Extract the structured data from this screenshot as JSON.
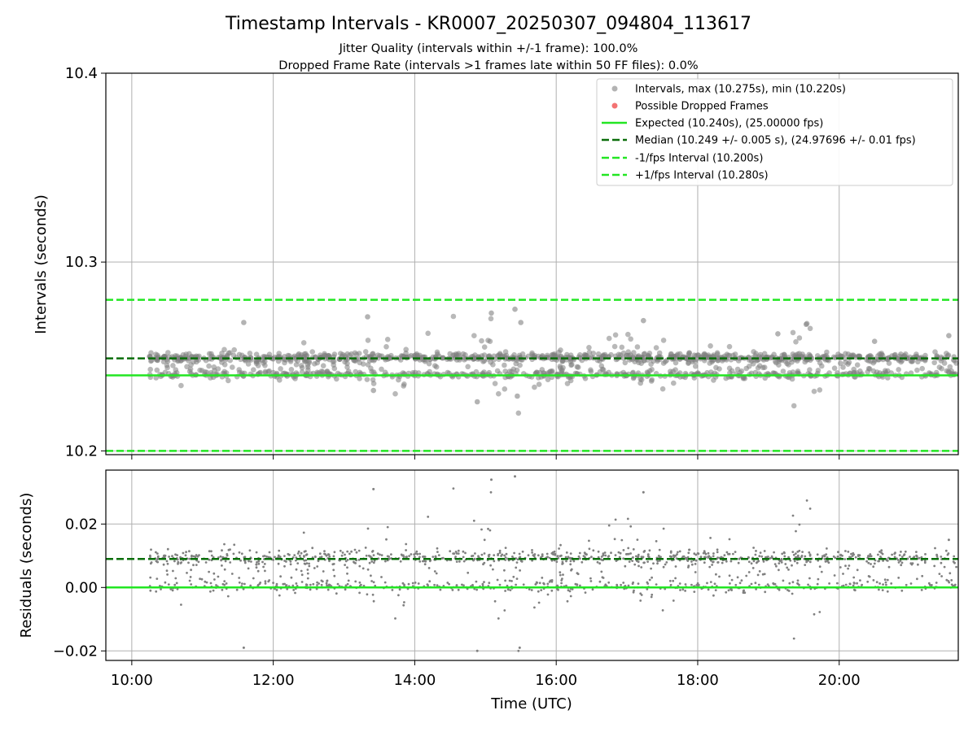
{
  "title": "Timestamp Intervals - KR0007_20250307_094804_113617",
  "subtitle_1": "Jitter Quality (intervals within +/-1 frame): 100.0%",
  "subtitle_2": "Dropped Frame Rate (intervals >1 frames late within 50 FF files): 0.0%",
  "colors": {
    "points": "#808080",
    "dropped": "#f05050",
    "expected": "#22e622",
    "median": "#0a6e0a",
    "bounds": "#22e622",
    "grid": "#b0b0b0"
  },
  "chart_data": [
    {
      "type": "scatter",
      "ylabel": "Intervals (seconds)",
      "ylim": [
        10.198,
        10.4
      ],
      "yticks": [
        "10.2",
        "10.3",
        "10.4"
      ],
      "xlim": [
        "09:38",
        "21:41"
      ],
      "grid": true,
      "legend_placement": "top-right",
      "legend": [
        "Intervals, max (10.275s), min (10.220s)",
        "Possible Dropped Frames",
        "Expected (10.240s), (25.00000 fps)",
        "Median (10.249 +/- 0.005 s), (24.97696 +/- 0.01 fps)",
        "-1/fps Interval (10.200s)",
        "+1/fps Interval (10.280s)"
      ],
      "reference_lines": {
        "expected": 10.24,
        "median": 10.249,
        "minus_1_fps": 10.2,
        "plus_1_fps": 10.28
      },
      "max_interval": 10.275,
      "min_interval": 10.22,
      "series": [
        {
          "name": "Intervals, max (10.275s), min (10.220s)",
          "x": [
            "10:15",
            "11:35",
            "13:20",
            "13:25",
            "14:53",
            "15:05",
            "15:25",
            "15:27",
            "15:30",
            "17:14",
            "18:13",
            "19:08",
            "19:32",
            "20:30",
            "21:33"
          ],
          "y": [
            10.25,
            10.268,
            10.271,
            10.232,
            10.226,
            10.273,
            10.275,
            10.229,
            10.268,
            10.269,
            10.25,
            10.262,
            10.267,
            10.258,
            10.261
          ]
        },
        {
          "name": "Possible Dropped Frames",
          "x": [],
          "y": []
        }
      ]
    },
    {
      "type": "scatter",
      "xlabel": "Time (UTC)",
      "ylabel": "Residuals (seconds)",
      "ylim": [
        -0.023,
        0.037
      ],
      "yticks": [
        "−0.02",
        "0.00",
        "0.02"
      ],
      "xticks": [
        "10:00",
        "12:00",
        "14:00",
        "16:00",
        "18:00",
        "20:00"
      ],
      "xlim": [
        "09:38",
        "21:41"
      ],
      "grid": true,
      "reference_lines": {
        "zero": 0.0,
        "median": 0.009
      },
      "series": [
        {
          "name": "Residuals",
          "x": [
            "11:35",
            "13:25",
            "14:53",
            "15:05",
            "15:25",
            "15:29",
            "17:14",
            "21:33"
          ],
          "y": [
            -0.019,
            0.031,
            -0.02,
            0.034,
            0.035,
            -0.019,
            0.03,
            0.015
          ]
        }
      ]
    }
  ]
}
